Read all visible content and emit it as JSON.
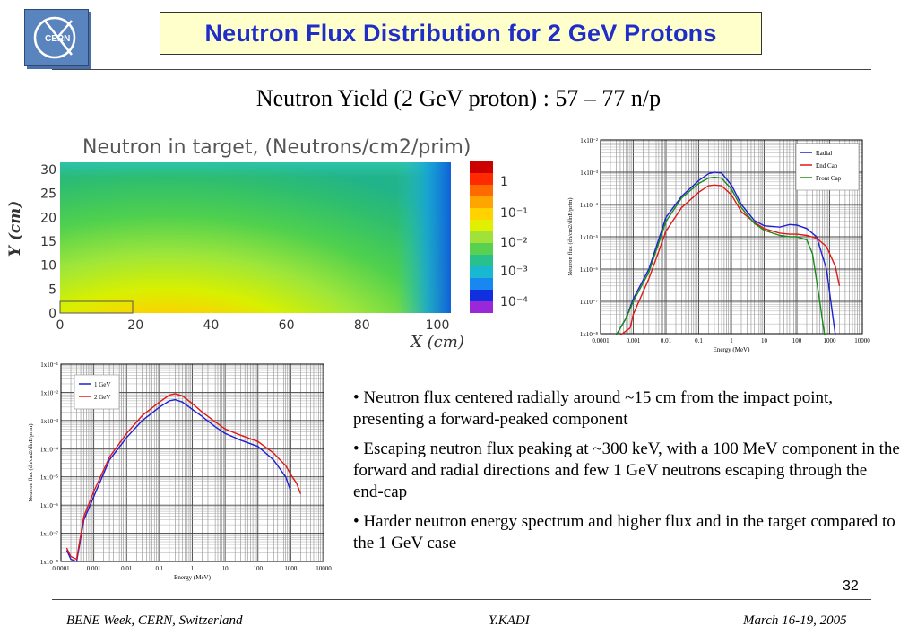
{
  "slide": {
    "title": "Neutron Flux Distribution for 2 GeV Protons",
    "subtitle": "Neutron Yield (2 GeV proton) : 57 – 77 n/p",
    "logo_text": "CERN",
    "page_number": "32"
  },
  "heatmap": {
    "title": "Neutron in target, (Neutrons/cm2/prim)",
    "xlabel": "X (cm)",
    "ylabel": "Y (cm)",
    "x_ticks": [
      "0",
      "20",
      "40",
      "60",
      "80",
      "100"
    ],
    "y_ticks": [
      "30",
      "25",
      "20",
      "15",
      "10",
      "5",
      "0"
    ],
    "colorbar_labels": [
      "1",
      "10⁻¹",
      "10⁻²",
      "10⁻³",
      "10⁻⁴"
    ]
  },
  "chart_data": [
    {
      "type": "line",
      "xlabel": "Energy (MeV)",
      "ylabel": "Neutron flux (dn/cm2/dlnE/prim)",
      "x_ticks": [
        "0.0001",
        "0.001",
        "0.01",
        "0.1",
        "1",
        "10",
        "100",
        "1000",
        "10000"
      ],
      "y_ticks": [
        "1x10⁻²",
        "1x10⁻³",
        "1x10⁻⁴",
        "1x10⁻⁵",
        "1x10⁻⁶",
        "1x10⁻⁷",
        "1x10⁻⁸"
      ],
      "xlim": [
        0.0001,
        10000
      ],
      "ylim": [
        1e-08,
        0.01
      ],
      "log_x": true,
      "log_y": true,
      "grid": true,
      "legend_position": "top-right",
      "series": [
        {
          "name": "Radial",
          "color": "#1f1fd6",
          "x": [
            0.0003,
            0.0006,
            0.001,
            0.003,
            0.01,
            0.03,
            0.1,
            0.2,
            0.3,
            0.5,
            1,
            2,
            5,
            10,
            30,
            60,
            100,
            200,
            400,
            800,
            1500
          ],
          "y": [
            9e-09,
            3e-08,
            1.2e-07,
            1e-06,
            4e-05,
            0.00018,
            0.00055,
            0.0009,
            0.001,
            0.00095,
            0.0004,
            0.0001,
            3.2e-05,
            2.2e-05,
            2e-05,
            2.4e-05,
            2.3e-05,
            1.8e-05,
            1e-05,
            1e-06,
            9e-09
          ]
        },
        {
          "name": "End Cap",
          "color": "#e01818",
          "x": [
            0.0004,
            0.0008,
            0.001,
            0.003,
            0.01,
            0.03,
            0.1,
            0.2,
            0.3,
            0.5,
            1,
            2,
            5,
            10,
            30,
            60,
            100,
            200,
            400,
            800,
            1500,
            2000
          ],
          "y": [
            9e-09,
            1.5e-08,
            4e-08,
            5e-07,
            1.5e-05,
            8e-05,
            0.00024,
            0.00038,
            0.0004,
            0.00038,
            0.0002,
            6e-05,
            2.8e-05,
            1.8e-05,
            1.3e-05,
            1.2e-05,
            1.2e-05,
            1.1e-05,
            9e-06,
            5e-06,
            1.2e-06,
            3e-07
          ]
        },
        {
          "name": "Front Cap",
          "color": "#178a17",
          "x": [
            0.0003,
            0.0006,
            0.001,
            0.003,
            0.01,
            0.03,
            0.1,
            0.2,
            0.3,
            0.5,
            1,
            2,
            5,
            10,
            30,
            60,
            100,
            200,
            300,
            500,
            700
          ],
          "y": [
            9e-09,
            3e-08,
            1e-07,
            8e-07,
            3e-05,
            0.00016,
            0.00045,
            0.00066,
            0.0007,
            0.00065,
            0.0003,
            8e-05,
            2.6e-05,
            1.6e-05,
            1.1e-05,
            1e-05,
            1e-05,
            8e-06,
            3e-06,
            1e-07,
            9e-09
          ]
        }
      ]
    },
    {
      "type": "line",
      "xlabel": "Energy (MeV)",
      "ylabel": "Neutron flux (dn/cm2/dlnE/prim)",
      "x_ticks": [
        "0.0001",
        "0.001",
        "0.01",
        "0.1",
        "1",
        "10",
        "100",
        "1000",
        "10000"
      ],
      "y_ticks": [
        "1x10⁻¹",
        "1x10⁻²",
        "1x10⁻³",
        "1x10⁻⁴",
        "1x10⁻⁵",
        "1x10⁻⁶",
        "1x10⁻⁷",
        "1x10⁻⁸"
      ],
      "xlim": [
        0.0001,
        10000
      ],
      "ylim": [
        1e-08,
        0.1
      ],
      "log_x": true,
      "log_y": true,
      "grid": true,
      "legend_position": "top-left",
      "series": [
        {
          "name": "1 GeV",
          "color": "#1f1fd6",
          "x": [
            0.00015,
            0.0002,
            0.0003,
            0.0005,
            0.001,
            0.003,
            0.01,
            0.03,
            0.1,
            0.2,
            0.3,
            0.5,
            1,
            2,
            5,
            10,
            30,
            100,
            300,
            700,
            1000
          ],
          "y": [
            2.5e-08,
            1.2e-08,
            1e-08,
            3e-07,
            2e-06,
            4e-05,
            0.00025,
            0.001,
            0.003,
            0.005,
            0.0055,
            0.0045,
            0.0025,
            0.0014,
            0.0006,
            0.00035,
            0.0002,
            0.00012,
            4e-05,
            1e-05,
            3e-06
          ]
        },
        {
          "name": "2 GeV",
          "color": "#e01818",
          "x": [
            0.00015,
            0.0002,
            0.0003,
            0.0005,
            0.001,
            0.003,
            0.01,
            0.03,
            0.1,
            0.2,
            0.3,
            0.5,
            1,
            2,
            5,
            10,
            30,
            100,
            300,
            700,
            1000,
            1500,
            2000
          ],
          "y": [
            3e-08,
            1.5e-08,
            1.2e-08,
            4e-07,
            3e-06,
            5e-05,
            0.00035,
            0.0015,
            0.0045,
            0.008,
            0.009,
            0.0075,
            0.004,
            0.002,
            0.0009,
            0.0005,
            0.0003,
            0.00018,
            7e-05,
            2.5e-05,
            1.2e-05,
            6e-06,
            2.5e-06
          ]
        }
      ]
    }
  ],
  "bullets": [
    "• Neutron flux centered radially around ~15 cm from the impact point, presenting a forward-peaked component",
    "• Escaping neutron flux peaking at ~300 keV, with a 100 MeV component in the forward and radial directions and few 1 GeV neutrons escaping through the end-cap",
    "• Harder neutron energy spectrum and higher flux and in the target compared to the 1 GeV case"
  ],
  "footer": {
    "left": "BENE Week, CERN, Switzerland",
    "center": "Y.KADI",
    "right": "March 16-19, 2005"
  }
}
